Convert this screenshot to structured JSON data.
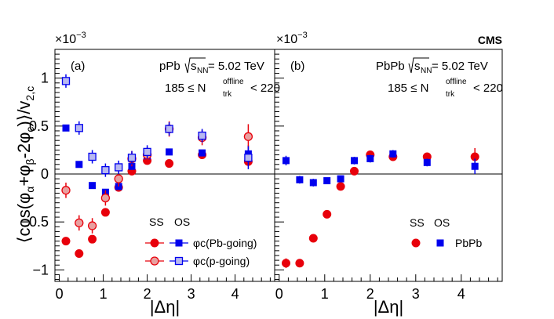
{
  "chart_data": [
    {
      "type": "scatter",
      "panel_label": "(a)",
      "system": "pPb",
      "energy_label": "= 5.02 TeV",
      "sqrt_label": "s",
      "sqrt_sub": "NN",
      "mult_prefix": "185 ≤ N",
      "mult_sup": "offline",
      "mult_sub": "trk",
      "mult_suffix": "< 220",
      "experiment": "",
      "xlabel": "|Δη|",
      "ylabel": "⟨cos(φα+φβ-2φc)⟩/v2,c",
      "scale_label": "×10",
      "scale_exp": "−3",
      "xlim": [
        -0.1,
        4.9
      ],
      "ylim": [
        -1.12,
        1.3
      ],
      "xticks": [
        "0",
        "1",
        "2",
        "3",
        "4"
      ],
      "yticks": [
        "−1",
        "−0.5",
        "0",
        "0.5",
        "1"
      ],
      "ytick_values": [
        -1,
        -0.5,
        0,
        0.5,
        1
      ],
      "xtick_values": [
        0,
        1,
        2,
        3,
        4
      ],
      "legend": {
        "header_ss": "SS",
        "header_os": "OS",
        "entries": [
          {
            "label": "φc(Pb-going)"
          },
          {
            "label": "φc(p-going)"
          }
        ]
      },
      "series": [
        {
          "name": "SS φc(Pb-going)",
          "marker": "filled-circle",
          "color": "#e8000b",
          "x": [
            0.15,
            0.45,
            0.75,
            1.05,
            1.35,
            1.65,
            2.0,
            2.5,
            3.25,
            4.3
          ],
          "y": [
            -0.7,
            -0.83,
            -0.68,
            -0.4,
            -0.14,
            0.03,
            0.14,
            0.11,
            0.2,
            0.13
          ],
          "err": [
            0.03,
            0.03,
            0.03,
            0.03,
            0.03,
            0.03,
            0.03,
            0.03,
            0.03,
            0.05
          ]
        },
        {
          "name": "OS φc(Pb-going)",
          "marker": "filled-square",
          "color": "#0000ee",
          "x": [
            0.15,
            0.45,
            0.75,
            1.05,
            1.35,
            1.65,
            2.0,
            2.5,
            3.25,
            4.3
          ],
          "y": [
            0.48,
            0.1,
            -0.12,
            -0.19,
            -0.13,
            0.08,
            0.19,
            0.23,
            0.22,
            0.21
          ],
          "err": [
            0.03,
            0.03,
            0.03,
            0.03,
            0.03,
            0.03,
            0.03,
            0.03,
            0.03,
            0.09
          ]
        },
        {
          "name": "SS φc(p-going)",
          "marker": "open-circle",
          "color": "#e8000b",
          "x": [
            0.15,
            0.45,
            0.75,
            1.05,
            1.35,
            1.65,
            2.0,
            2.5,
            3.25,
            4.3
          ],
          "y": [
            -0.17,
            -0.51,
            -0.54,
            -0.25,
            -0.05,
            0.16,
            0.2,
            0.47,
            0.38,
            0.39
          ],
          "err": [
            0.08,
            0.08,
            0.08,
            0.08,
            0.08,
            0.08,
            0.08,
            0.08,
            0.08,
            0.13
          ]
        },
        {
          "name": "OS φc(p-going)",
          "marker": "open-square",
          "color": "#0000ee",
          "x": [
            0.15,
            0.45,
            0.75,
            1.05,
            1.35,
            1.65,
            2.0,
            2.5,
            3.25,
            4.3
          ],
          "y": [
            0.97,
            0.48,
            0.18,
            0.04,
            0.07,
            0.17,
            0.23,
            0.47,
            0.4,
            0.17
          ],
          "err": [
            0.07,
            0.07,
            0.07,
            0.07,
            0.07,
            0.07,
            0.07,
            0.07,
            0.07,
            0.12
          ]
        }
      ]
    },
    {
      "type": "scatter",
      "panel_label": "(b)",
      "system": "PbPb",
      "energy_label": "= 5.02 TeV",
      "sqrt_label": "s",
      "sqrt_sub": "NN",
      "mult_prefix": "185 ≤ N",
      "mult_sup": "offline",
      "mult_sub": "trk",
      "mult_suffix": "< 220",
      "experiment": "CMS",
      "xlabel": "|Δη|",
      "scale_label": "×10",
      "scale_exp": "−3",
      "xlim": [
        -0.1,
        4.9
      ],
      "ylim": [
        -1.12,
        1.3
      ],
      "xticks": [
        "0",
        "1",
        "2",
        "3",
        "4"
      ],
      "xtick_values": [
        0,
        1,
        2,
        3,
        4
      ],
      "legend": {
        "header_ss": "SS",
        "header_os": "OS",
        "entries": [
          {
            "label": "PbPb"
          }
        ]
      },
      "series": [
        {
          "name": "SS PbPb",
          "marker": "filled-circle",
          "color": "#e8000b",
          "x": [
            0.15,
            0.45,
            0.75,
            1.05,
            1.35,
            1.65,
            2.0,
            2.5,
            3.25,
            4.3
          ],
          "y": [
            -0.93,
            -0.93,
            -0.67,
            -0.42,
            -0.13,
            0.03,
            0.2,
            0.18,
            0.18,
            0.18
          ],
          "err": [
            0.05,
            0.04,
            0.04,
            0.03,
            0.03,
            0.04,
            0.04,
            0.04,
            0.04,
            0.09
          ]
        },
        {
          "name": "OS PbPb",
          "marker": "filled-square",
          "color": "#0000ee",
          "x": [
            0.15,
            0.45,
            0.75,
            1.05,
            1.35,
            1.65,
            2.0,
            2.5,
            3.25,
            4.3
          ],
          "y": [
            0.14,
            -0.06,
            -0.09,
            -0.07,
            -0.05,
            0.14,
            0.16,
            0.21,
            0.12,
            0.08
          ],
          "err": [
            0.05,
            0.04,
            0.04,
            0.03,
            0.03,
            0.04,
            0.04,
            0.04,
            0.04,
            0.08
          ]
        }
      ]
    }
  ]
}
